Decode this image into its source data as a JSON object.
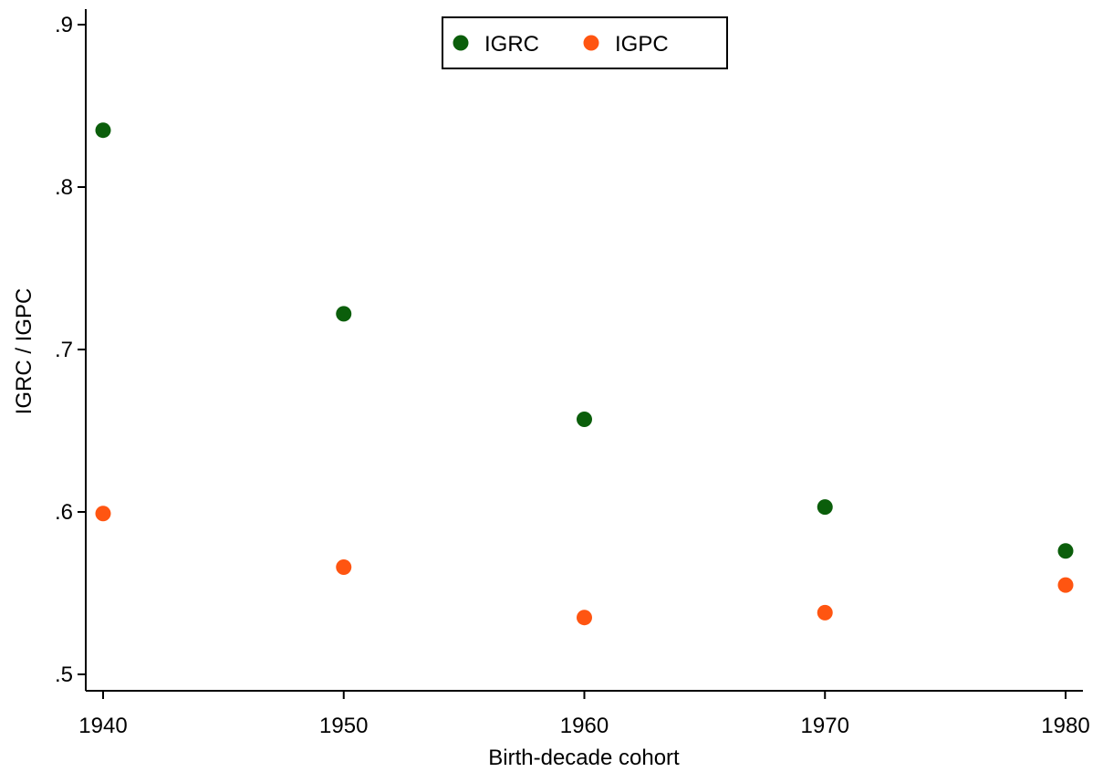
{
  "chart_data": {
    "type": "scatter",
    "x": [
      1940,
      1950,
      1960,
      1970,
      1980
    ],
    "xlabel": "Birth-decade cohort",
    "ylabel": "IGRC / IGPC",
    "xticks": [
      1940,
      1950,
      1960,
      1970,
      1980
    ],
    "xtick_labels": [
      "1940",
      "1950",
      "1960",
      "1970",
      "1980"
    ],
    "yticks": [
      0.5,
      0.6,
      0.7,
      0.8,
      0.9
    ],
    "ytick_labels": [
      ".5",
      ".6",
      ".7",
      ".8",
      ".9"
    ],
    "xlim": [
      1940,
      1980
    ],
    "ylim": [
      0.5,
      0.9
    ],
    "grid": false,
    "legend_position": "top-center",
    "series": [
      {
        "name": "IGRC",
        "color": "#0b5e0b",
        "values": [
          0.835,
          0.722,
          0.657,
          0.603,
          0.576
        ]
      },
      {
        "name": "IGPC",
        "color": "#ff5511",
        "values": [
          0.599,
          0.566,
          0.535,
          0.538,
          0.555
        ]
      }
    ]
  }
}
